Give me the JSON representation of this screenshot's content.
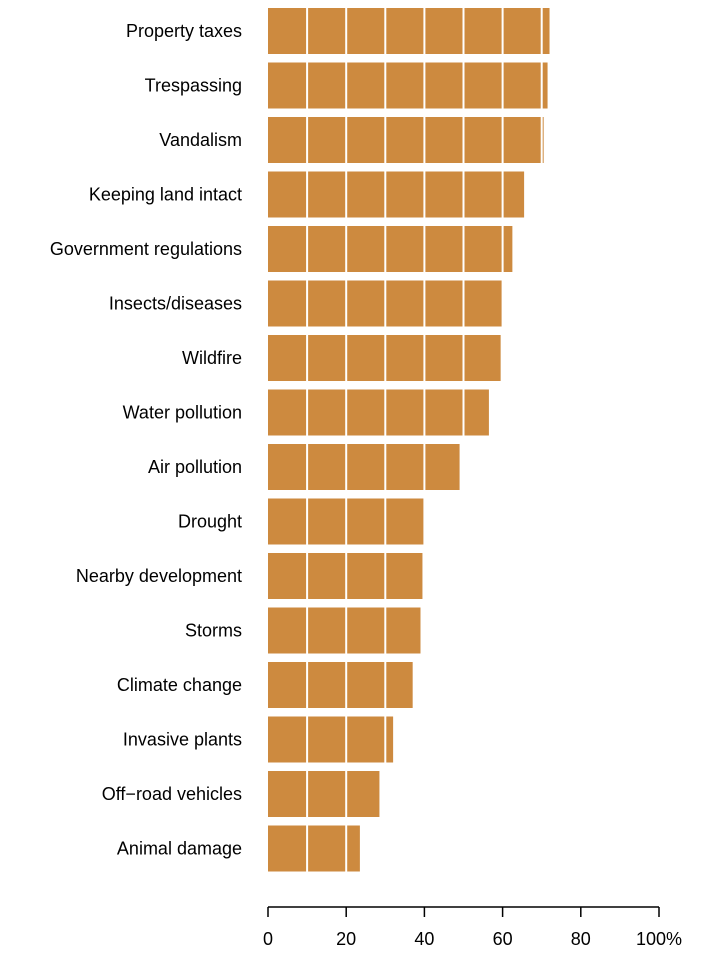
{
  "chart_data": {
    "type": "bar",
    "orientation": "horizontal",
    "categories": [
      "Property taxes",
      "Trespassing",
      "Vandalism",
      "Keeping land intact",
      "Government regulations",
      "Insects/diseases",
      "Wildfire",
      "Water pollution",
      "Air pollution",
      "Drought",
      "Nearby development",
      "Storms",
      "Climate change",
      "Invasive plants",
      "Off−road vehicles",
      "Animal damage"
    ],
    "values": [
      72,
      71.5,
      70.5,
      65.5,
      62.5,
      60,
      59.5,
      56.5,
      49,
      40,
      39.5,
      39,
      37,
      32,
      28.5,
      23.5
    ],
    "xlim": [
      0,
      100
    ],
    "x_ticks": [
      0,
      20,
      40,
      60,
      80,
      100
    ],
    "x_tick_labels": [
      "0",
      "20",
      "40",
      "60",
      "80",
      "100%"
    ],
    "gridlines_every": 10,
    "grid": "white vertical lines over bars",
    "bar_color": "#CD8A3F",
    "title": "",
    "xlabel": "",
    "ylabel": ""
  }
}
